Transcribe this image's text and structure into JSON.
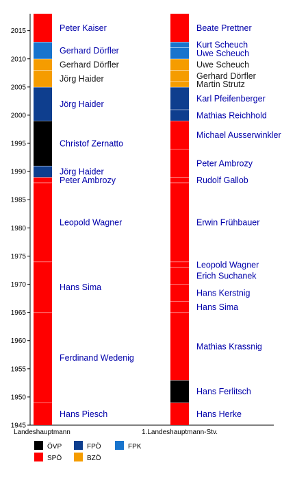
{
  "chart_data": {
    "type": "timeline",
    "y_axis": {
      "min": 1945,
      "max": 2018,
      "ticks": [
        1945,
        1950,
        1955,
        1960,
        1965,
        1970,
        1975,
        1980,
        1985,
        1990,
        1995,
        2000,
        2005,
        2010,
        2015
      ]
    },
    "party_colors": {
      "ÖVP": "#000000",
      "SPÖ": "#ff0000",
      "FPÖ": "#0e3e8e",
      "BZÖ": "#f59c00",
      "FPK": "#1874cd"
    },
    "legend": [
      {
        "party": "ÖVP"
      },
      {
        "party": "FPÖ"
      },
      {
        "party": "FPK"
      },
      {
        "party": "SPÖ"
      },
      {
        "party": "BZÖ"
      }
    ],
    "columns": [
      {
        "label": "Landeshauptmann",
        "segments": [
          {
            "name": "Hans Piesch",
            "party": "SPÖ",
            "start": 1945,
            "end": 1949
          },
          {
            "name": "Ferdinand Wedenig",
            "party": "SPÖ",
            "start": 1949,
            "end": 1965
          },
          {
            "name": "Hans Sima",
            "party": "SPÖ",
            "start": 1965,
            "end": 1974
          },
          {
            "name": "Leopold Wagner",
            "party": "SPÖ",
            "start": 1974,
            "end": 1988
          },
          {
            "name": "Peter Ambrozy",
            "party": "SPÖ",
            "start": 1988,
            "end": 1989
          },
          {
            "name": "Jörg Haider",
            "party": "FPÖ",
            "start": 1989,
            "end": 1991
          },
          {
            "name": "Christof Zernatto",
            "party": "ÖVP",
            "start": 1991,
            "end": 1999
          },
          {
            "name": "Jörg Haider",
            "party": "FPÖ",
            "start": 1999,
            "end": 2005
          },
          {
            "name": "Jörg Haider",
            "party": "BZÖ",
            "start": 2005,
            "end": 2008
          },
          {
            "name": "Gerhard Dörfler",
            "party": "BZÖ",
            "start": 2008,
            "end": 2010
          },
          {
            "name": "Gerhard Dörfler",
            "party": "FPK",
            "start": 2010,
            "end": 2013
          },
          {
            "name": "Peter Kaiser",
            "party": "SPÖ",
            "start": 2013,
            "end": 2018
          }
        ]
      },
      {
        "label": "1.Landeshauptmann-Stv.",
        "segments": [
          {
            "name": "Hans Herke",
            "party": "SPÖ",
            "start": 1945,
            "end": 1949
          },
          {
            "name": "Hans Ferlitsch",
            "party": "ÖVP",
            "start": 1949,
            "end": 1953
          },
          {
            "name": "Mathias Krassnig",
            "party": "SPÖ",
            "start": 1953,
            "end": 1965
          },
          {
            "name": "Hans Sima",
            "party": "SPÖ",
            "start": 1965,
            "end": 1967
          },
          {
            "name": "Hans Kerstnig",
            "party": "SPÖ",
            "start": 1967,
            "end": 1970
          },
          {
            "name": "Erich Suchanek",
            "party": "SPÖ",
            "start": 1970,
            "end": 1973
          },
          {
            "name": "Leopold Wagner",
            "party": "SPÖ",
            "start": 1973,
            "end": 1974
          },
          {
            "name": "Erwin Frühbauer",
            "party": "SPÖ",
            "start": 1974,
            "end": 1988
          },
          {
            "name": "Rudolf Gallob",
            "party": "SPÖ",
            "start": 1988,
            "end": 1989
          },
          {
            "name": "Peter Ambrozy",
            "party": "SPÖ",
            "start": 1989,
            "end": 1994
          },
          {
            "name": "Michael Ausserwinkler",
            "party": "SPÖ",
            "start": 1994,
            "end": 1999
          },
          {
            "name": "Mathias Reichhold",
            "party": "FPÖ",
            "start": 1999,
            "end": 2001
          },
          {
            "name": "Karl Pfeifenberger",
            "party": "FPÖ",
            "start": 2001,
            "end": 2005
          },
          {
            "name": "Martin Strutz",
            "party": "BZÖ",
            "start": 2005,
            "end": 2006
          },
          {
            "name": "Gerhard Dörfler",
            "party": "BZÖ",
            "start": 2006,
            "end": 2008
          },
          {
            "name": "Uwe Scheuch",
            "party": "BZÖ",
            "start": 2008,
            "end": 2010
          },
          {
            "name": "Uwe Scheuch",
            "party": "FPK",
            "start": 2010,
            "end": 2012
          },
          {
            "name": "Kurt Scheuch",
            "party": "FPK",
            "start": 2012,
            "end": 2013
          },
          {
            "name": "Beate Prettner",
            "party": "SPÖ",
            "start": 2013,
            "end": 2018
          }
        ]
      }
    ]
  }
}
